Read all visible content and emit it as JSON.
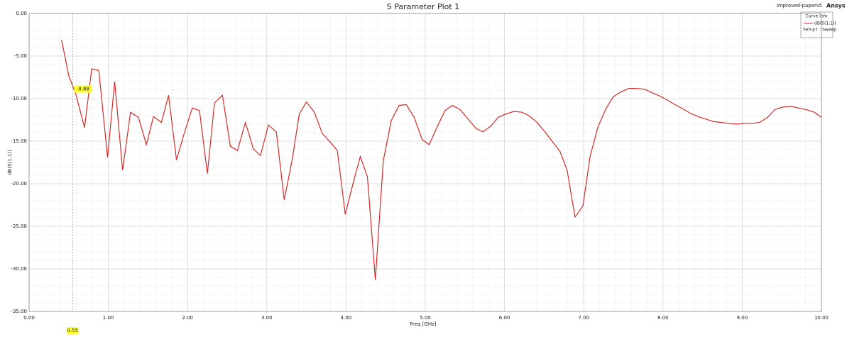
{
  "chart_data": {
    "type": "line",
    "title": "S Parameter Plot 1",
    "project": "Improved-papers5",
    "brand": "Ansys",
    "xlabel": "Freq [GHz]",
    "ylabel": "dB(S(1,1))",
    "legend_title": "Curve Info",
    "grid": true,
    "x": [
      0.41,
      0.5,
      0.59,
      0.7,
      0.79,
      0.88,
      0.99,
      1.08,
      1.18,
      1.28,
      1.38,
      1.48,
      1.57,
      1.67,
      1.76,
      1.86,
      1.96,
      2.06,
      2.15,
      2.25,
      2.34,
      2.44,
      2.54,
      2.63,
      2.73,
      2.83,
      2.92,
      3.02,
      3.12,
      3.22,
      3.32,
      3.41,
      3.5,
      3.6,
      3.7,
      3.8,
      3.89,
      3.99,
      4.09,
      4.18,
      4.27,
      4.37,
      4.47,
      4.57,
      4.67,
      4.76,
      4.86,
      4.96,
      5.05,
      5.15,
      5.25,
      5.34,
      5.44,
      5.54,
      5.64,
      5.73,
      5.83,
      5.92,
      6.02,
      6.12,
      6.22,
      6.31,
      6.41,
      6.51,
      6.6,
      6.7,
      6.79,
      6.89,
      6.99,
      7.08,
      7.18,
      7.28,
      7.37,
      7.47,
      7.57,
      7.67,
      7.77,
      7.86,
      7.96,
      8.06,
      8.15,
      8.25,
      8.34,
      8.44,
      8.54,
      8.64,
      8.74,
      8.83,
      8.93,
      9.02,
      9.12,
      9.22,
      9.32,
      9.41,
      9.51,
      9.61,
      9.71,
      9.81,
      9.91,
      10.0
    ],
    "series": [
      {
        "name": "dB(S(1,1))",
        "setup": "Setup1 : Sweep",
        "color": "#d42a2a",
        "values": [
          -3.1,
          -7.3,
          -9.5,
          -13.4,
          -6.5,
          -6.7,
          -16.9,
          -8.0,
          -18.4,
          -11.6,
          -12.2,
          -15.4,
          -12.1,
          -12.8,
          -9.6,
          -17.2,
          -14.0,
          -11.1,
          -11.4,
          -18.8,
          -10.5,
          -9.6,
          -15.6,
          -16.1,
          -12.8,
          -15.9,
          -16.7,
          -13.1,
          -13.9,
          -21.9,
          -17.2,
          -11.8,
          -10.4,
          -11.6,
          -14.1,
          -15.1,
          -16.1,
          -23.6,
          -19.9,
          -16.8,
          -19.2,
          -31.3,
          -17.3,
          -12.6,
          -10.8,
          -10.7,
          -12.2,
          -14.8,
          -15.4,
          -13.3,
          -11.4,
          -10.8,
          -11.3,
          -12.4,
          -13.5,
          -13.9,
          -13.2,
          -12.2,
          -11.8,
          -11.5,
          -11.6,
          -12.0,
          -12.8,
          -13.9,
          -15.0,
          -16.2,
          -18.4,
          -23.9,
          -22.6,
          -16.8,
          -13.3,
          -11.2,
          -9.8,
          -9.2,
          -8.8,
          -8.8,
          -8.9,
          -9.3,
          -9.7,
          -10.2,
          -10.7,
          -11.2,
          -11.7,
          -12.1,
          -12.4,
          -12.7,
          -12.8,
          -12.9,
          -13.0,
          -12.9,
          -12.9,
          -12.8,
          -12.2,
          -11.3,
          -11.0,
          -10.9,
          -11.1,
          -11.3,
          -11.6,
          -12.2
        ]
      }
    ],
    "marker": {
      "x": 0.55,
      "value": -8.88
    },
    "xlim": [
      0,
      10
    ],
    "xticks": [
      {
        "value": 0,
        "label": "0.00"
      },
      {
        "value": 1,
        "label": "1.00"
      },
      {
        "value": 2,
        "label": "2.00"
      },
      {
        "value": 3,
        "label": "3.00"
      },
      {
        "value": 4,
        "label": "4.00"
      },
      {
        "value": 5,
        "label": "5.00"
      },
      {
        "value": 6,
        "label": "6.00"
      },
      {
        "value": 7,
        "label": "7.00"
      },
      {
        "value": 8,
        "label": "8.00"
      },
      {
        "value": 9,
        "label": "9.00"
      },
      {
        "value": 10,
        "label": "10.00"
      }
    ],
    "ylim": [
      -35,
      0
    ],
    "yticks": [
      {
        "value": 0,
        "label": "0.00"
      },
      {
        "value": -5,
        "label": "-5.00"
      },
      {
        "value": -10,
        "label": "-10.00"
      },
      {
        "value": -15,
        "label": "-15.00"
      },
      {
        "value": -20,
        "label": "-20.00"
      },
      {
        "value": -25,
        "label": "-25.00"
      },
      {
        "value": -30,
        "label": "-30.00"
      },
      {
        "value": -35,
        "label": "-35.00"
      }
    ]
  }
}
